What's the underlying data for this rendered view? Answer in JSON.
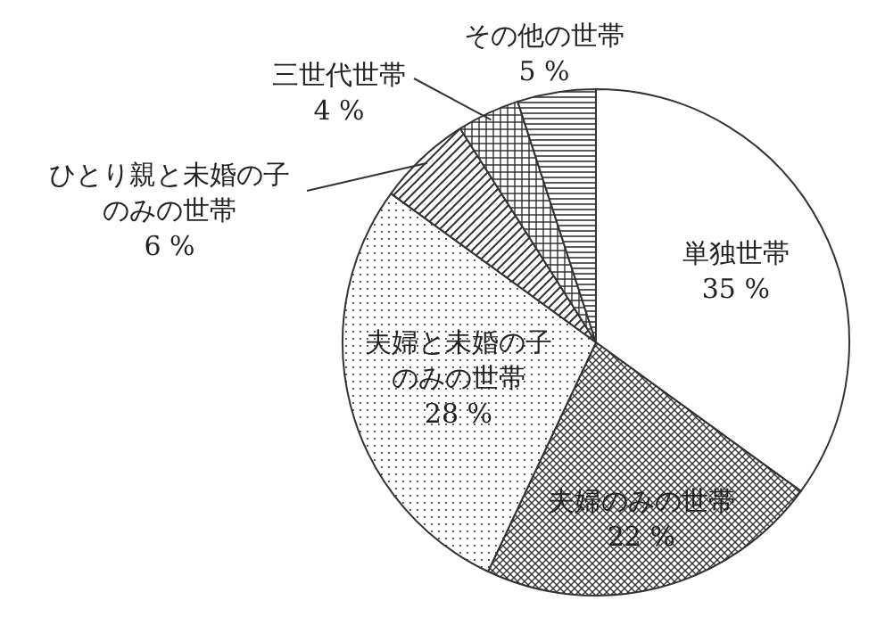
{
  "chart_data": {
    "type": "pie",
    "categories": [
      "単独世帯",
      "夫婦のみの世帯",
      "夫婦と未婚の子のみの世帯",
      "ひとり親と未婚の子のみの世帯",
      "三世代世帯",
      "その他の世帯"
    ],
    "values": [
      35,
      22,
      28,
      6,
      4,
      5
    ],
    "value_labels": [
      "35 %",
      "22 %",
      "28 %",
      "6 %",
      "4 %",
      "5 %"
    ],
    "colors": [
      "#ffffff",
      "#333333",
      "#333333",
      "#333333",
      "#333333",
      "#333333"
    ]
  }
}
